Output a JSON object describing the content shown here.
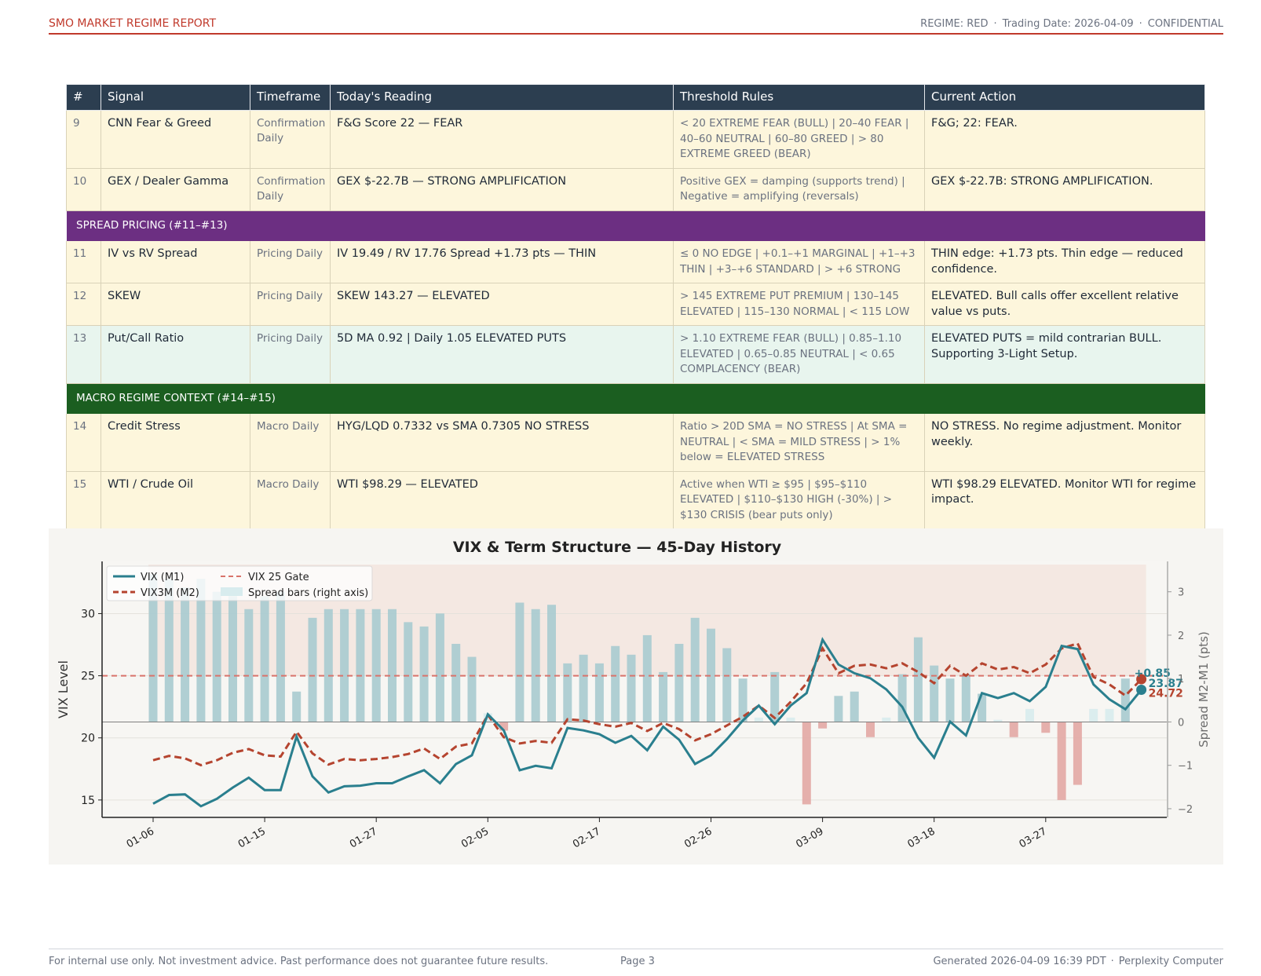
{
  "header": {
    "title": "SMO MARKET REGIME REPORT",
    "regime": "REGIME: RED",
    "sep": "·",
    "trading_date": "Trading Date: 2026-04-09",
    "classification": "CONFIDENTIAL"
  },
  "table": {
    "columns": [
      "#",
      "Signal",
      "Timeframe",
      "Today's Reading",
      "Threshold Rules",
      "Current Action"
    ],
    "rows_a": [
      {
        "num": "9",
        "signal": "CNN Fear & Greed",
        "timeframe": "Confirmation Daily",
        "reading": "F&G Score 22 — FEAR",
        "rules": "< 20 EXTREME FEAR (BULL) | 20–40 FEAR | 40–60 NEUTRAL | 60–80 GREED | > 80 EXTREME GREED (BEAR)",
        "action": "F&G; 22: FEAR."
      },
      {
        "num": "10",
        "signal": "GEX / Dealer Gamma",
        "timeframe": "Confirmation Daily",
        "reading": "GEX $-22.7B — STRONG AMPLIFICATION",
        "rules": "Positive GEX = damping (supports trend) | Negative = amplifying (reversals)",
        "action": "GEX $-22.7B: STRONG AMPLIFICATION."
      }
    ],
    "section_pricing": "SPREAD PRICING (#11–#13)",
    "rows_b": [
      {
        "num": "11",
        "signal": "IV vs RV Spread",
        "timeframe": "Pricing Daily",
        "reading": "IV 19.49 / RV 17.76 Spread +1.73 pts — THIN",
        "rules": "≤ 0 NO EDGE | +0.1–+1 MARGINAL | +1–+3 THIN | +3–+6 STANDARD | > +6 STRONG",
        "action": "THIN edge: +1.73 pts. Thin edge — reduced confidence."
      },
      {
        "num": "12",
        "signal": "SKEW",
        "timeframe": "Pricing Daily",
        "reading": "SKEW 143.27 — ELEVATED",
        "rules": "> 145 EXTREME PUT PREMIUM | 130–145 ELEVATED | 115–130 NORMAL | < 115 LOW",
        "action": "ELEVATED. Bull calls offer excellent relative value vs puts."
      },
      {
        "num": "13",
        "signal": "Put/Call Ratio",
        "timeframe": "Pricing Daily",
        "reading": "5D MA 0.92 | Daily 1.05 ELEVATED PUTS",
        "rules": "> 1.10 EXTREME FEAR (BULL) | 0.85–1.10 ELEVATED | 0.65–0.85 NEUTRAL | < 0.65 COMPLACENCY (BEAR)",
        "action": "ELEVATED PUTS = mild contrarian BULL. Supporting 3-Light Setup."
      }
    ],
    "section_macro": "MACRO REGIME CONTEXT (#14–#15)",
    "rows_c": [
      {
        "num": "14",
        "signal": "Credit Stress",
        "timeframe": "Macro Daily",
        "reading": "HYG/LQD 0.7332 vs SMA 0.7305 NO STRESS",
        "rules": "Ratio > 20D SMA = NO STRESS | At SMA = NEUTRAL | < SMA = MILD STRESS | > 1% below = ELEVATED STRESS",
        "action": "NO STRESS. No regime adjustment. Monitor weekly."
      },
      {
        "num": "15",
        "signal": "WTI / Crude Oil",
        "timeframe": "Macro Daily",
        "reading": "WTI $98.29 — ELEVATED",
        "rules": "Active when WTI ≥ $95 | $95–$110 ELEVATED | $110–$130 HIGH (-30%) | > $130 CRISIS (bear puts only)",
        "action": "WTI $98.29 ELEVATED. Monitor WTI for regime impact."
      }
    ]
  },
  "chart_data": {
    "type": "line",
    "title": "VIX & Term Structure — 45-Day History",
    "ylabel": "VIX Level",
    "ylabel_right": "Spread M2-M1 (pts)",
    "ylim": [
      13.6,
      34.2
    ],
    "ylim_right": [
      -2.2,
      3.7
    ],
    "yticks": [
      15,
      20,
      25,
      30
    ],
    "yticks_right": [
      -2,
      -1,
      0,
      1,
      2,
      3
    ],
    "yticks_right_labels": [
      "−2",
      "−1",
      "0",
      "1",
      "2",
      "3"
    ],
    "gate": 25,
    "xtick_labels": [
      "01-06",
      "01-15",
      "01-27",
      "02-05",
      "02-17",
      "02-26",
      "03-09",
      "03-18",
      "03-27"
    ],
    "xtick_index": [
      0,
      7,
      14,
      21,
      28,
      35,
      42,
      49,
      56
    ],
    "legend": {
      "vix": "VIX (M1)",
      "vix3m": "VIX3M (M2)",
      "gate": "VIX 25 Gate",
      "spread": "Spread bars (right axis)"
    },
    "series": [
      {
        "name": "VIX (M1)",
        "color": "#2a7f8e",
        "values": [
          14.7,
          15.4,
          15.45,
          14.5,
          15.1,
          16.0,
          16.8,
          15.8,
          15.8,
          20.1,
          16.9,
          15.6,
          16.1,
          16.15,
          16.35,
          16.35,
          16.9,
          17.4,
          16.35,
          17.9,
          18.6,
          21.9,
          20.6,
          17.4,
          17.75,
          17.55,
          20.8,
          20.6,
          20.3,
          19.6,
          20.15,
          19.0,
          20.9,
          19.85,
          17.9,
          18.6,
          19.9,
          21.4,
          22.6,
          21.1,
          22.6,
          23.6,
          27.9,
          25.9,
          25.2,
          24.8,
          23.9,
          22.5,
          20.0,
          18.4,
          21.3,
          20.2,
          23.6,
          23.2,
          23.6,
          22.95,
          24.1,
          27.4,
          27.15,
          24.3,
          23.1,
          22.3,
          23.87
        ]
      },
      {
        "name": "VIX3M (M2)",
        "color": "#b5442f",
        "values": [
          18.2,
          18.55,
          18.35,
          17.8,
          18.2,
          18.8,
          19.1,
          18.6,
          18.5,
          20.5,
          18.75,
          17.85,
          18.3,
          18.2,
          18.3,
          18.45,
          18.7,
          19.15,
          18.3,
          19.3,
          19.55,
          21.85,
          20.05,
          19.55,
          19.75,
          19.6,
          21.5,
          21.4,
          21.1,
          20.9,
          21.2,
          20.55,
          21.2,
          20.7,
          19.8,
          20.3,
          21.0,
          21.7,
          22.6,
          21.6,
          22.9,
          24.4,
          27.2,
          25.2,
          25.8,
          25.9,
          25.6,
          26.0,
          25.3,
          24.4,
          25.8,
          25.0,
          26.0,
          25.5,
          25.7,
          25.2,
          25.9,
          27.2,
          27.6,
          24.9,
          24.3,
          23.4,
          24.72
        ]
      },
      {
        "name": "Spread bars (right axis)",
        "values": [
          3.4,
          3.3,
          3.1,
          3.3,
          3.0,
          2.9,
          2.6,
          2.9,
          3.0,
          0.7,
          2.4,
          2.6,
          2.6,
          2.6,
          2.6,
          2.6,
          2.3,
          2.2,
          2.5,
          1.8,
          1.5,
          0.2,
          -0.2,
          2.75,
          2.6,
          2.7,
          1.35,
          1.55,
          1.35,
          1.75,
          1.55,
          2.0,
          1.15,
          1.8,
          2.4,
          2.15,
          1.7,
          1.0,
          0.1,
          1.15,
          0.1,
          -1.9,
          -0.15,
          0.6,
          0.7,
          -0.35,
          0.1,
          1.1,
          1.95,
          1.3,
          1.0,
          1.1,
          0.65,
          0.05,
          -0.35,
          0.3,
          -0.25,
          -1.8,
          -1.45,
          0.3,
          0.3,
          1.0
        ]
      }
    ],
    "annotations": [
      {
        "label": "+0.85",
        "color": "#2a7f8e"
      },
      {
        "label": "23.87",
        "color": "#2a7f8e"
      },
      {
        "label": "24.72",
        "color": "#b5442f"
      }
    ]
  },
  "footer": {
    "disclaimer": "For internal use only. Not investment advice. Past performance does not guarantee future results.",
    "page": "Page 3",
    "generated": "Generated 2026-04-09 16:39 PDT",
    "sep": "·",
    "brand": "Perplexity Computer"
  }
}
